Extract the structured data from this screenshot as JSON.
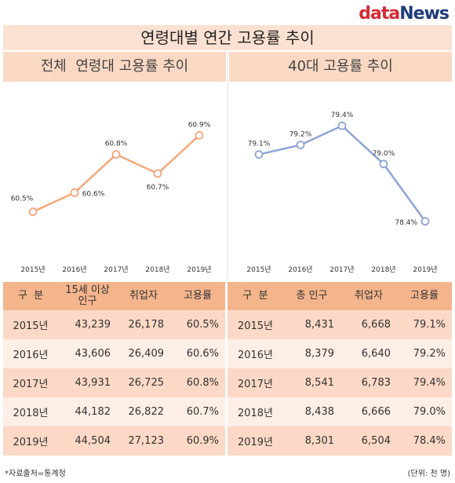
{
  "logo": {
    "part1": "data",
    "part2": "News"
  },
  "title": "연령대별 연간 고용률 추이",
  "left_panel": {
    "title": "전체  연령대 고용률 추이"
  },
  "right_panel": {
    "title": "40대 고용률 추이"
  },
  "chart_data": [
    {
      "type": "line",
      "title": "전체  연령대 고용률 추이",
      "categories": [
        "2015년",
        "2016년",
        "2017년",
        "2018년",
        "2019년"
      ],
      "values": [
        60.5,
        60.6,
        60.8,
        60.7,
        60.9
      ],
      "data_labels": [
        "60.5%",
        "60.6%",
        "60.8%",
        "60.7%",
        "60.9%"
      ],
      "color": "#f4a77a",
      "ylim": [
        60.4,
        61.0
      ],
      "grid": false
    },
    {
      "type": "line",
      "title": "40대 고용률 추이",
      "categories": [
        "2015년",
        "2016년",
        "2017년",
        "2018년",
        "2019년"
      ],
      "values": [
        79.1,
        79.2,
        79.4,
        79.0,
        78.4
      ],
      "data_labels": [
        "79.1%",
        "79.2%",
        "79.4%",
        "79.0%",
        "78.4%"
      ],
      "color": "#8ea4d6",
      "ylim": [
        78.3,
        79.5
      ],
      "grid": false
    }
  ],
  "table": {
    "headers": [
      "구  분",
      "15세 이상\n인구",
      "취업자",
      "고용률",
      "구  분",
      "총 인구",
      "취업자",
      "고용률"
    ],
    "rows": [
      [
        "2015년",
        "43,239",
        "26,178",
        "60.5%",
        "2015년",
        "8,431",
        "6,668",
        "79.1%"
      ],
      [
        "2016년",
        "43,606",
        "26,409",
        "60.6%",
        "2016년",
        "8,379",
        "6,640",
        "79.2%"
      ],
      [
        "2017년",
        "43,931",
        "26,725",
        "60.8%",
        "2017년",
        "8,541",
        "6,783",
        "79.4%"
      ],
      [
        "2018년",
        "44,182",
        "26,822",
        "60.7%",
        "2018년",
        "8,438",
        "6,666",
        "79.0%"
      ],
      [
        "2019년",
        "44,504",
        "27,123",
        "60.9%",
        "2019년",
        "8,301",
        "6,504",
        "78.4%"
      ]
    ]
  },
  "footer": {
    "source": "*자료출처=통계청",
    "unit": "(단위: 천 명)"
  }
}
